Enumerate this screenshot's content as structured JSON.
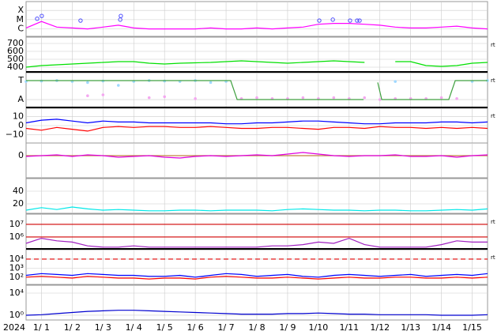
{
  "chart_data": {
    "type": "multi_panel",
    "year_label": "2024",
    "x": [
      0,
      0.5,
      1,
      1.5,
      2,
      2.5,
      3,
      3.5,
      4,
      4.5,
      5,
      5.5,
      6,
      6.5,
      7,
      7.5,
      8,
      8.5,
      9,
      9.5,
      10,
      10.5,
      11,
      11.5,
      12,
      12.5,
      13,
      13.5,
      14,
      14.5,
      15
    ],
    "xlim": [
      0,
      15
    ],
    "xticks": [
      {
        "value": 0.5,
        "label": "1/ 1"
      },
      {
        "value": 1.5,
        "label": "1/ 2"
      },
      {
        "value": 2.5,
        "label": "1/ 3"
      },
      {
        "value": 3.5,
        "label": "1/ 4"
      },
      {
        "value": 4.5,
        "label": "1/ 5"
      },
      {
        "value": 5.5,
        "label": "1/ 6"
      },
      {
        "value": 6.5,
        "label": "1/ 7"
      },
      {
        "value": 7.5,
        "label": "1/ 8"
      },
      {
        "value": 8.5,
        "label": "1/ 9"
      },
      {
        "value": 9.5,
        "label": "1/10"
      },
      {
        "value": 10.5,
        "label": "1/11"
      },
      {
        "value": 11.5,
        "label": "1/12"
      },
      {
        "value": 12.5,
        "label": "1/13"
      },
      {
        "value": 13.5,
        "label": "1/14"
      },
      {
        "value": 14.5,
        "label": "1/15"
      }
    ],
    "panels": [
      {
        "type": "line",
        "ylim": [
          -6.8,
          -3.05
        ],
        "yticks": [
          {
            "value": -4,
            "label": "X"
          },
          {
            "value": -5,
            "label": "M"
          },
          {
            "value": -6,
            "label": "C"
          }
        ],
        "series": [
          {
            "type": "line",
            "color": "#ff00ff",
            "values": [
              -5.9,
              -5.2,
              -5.8,
              -5.9,
              -6.0,
              -5.8,
              -5.6,
              -5.9,
              -6.0,
              -6.0,
              -6.0,
              -6.0,
              -5.9,
              -6.0,
              -6.0,
              -5.9,
              -6.0,
              -5.9,
              -5.8,
              -5.5,
              -5.4,
              -5.4,
              -5.5,
              -5.6,
              -5.8,
              -5.9,
              -5.9,
              -5.8,
              -5.7,
              -5.9,
              -6.0
            ]
          },
          {
            "type": "events",
            "color": "#5050ff",
            "x": [
              0.36,
              0.51,
              1.77,
              3.06,
              3.08,
              9.53,
              9.97,
              10.53,
              10.76,
              10.84
            ],
            "values": [
              -4.9,
              -4.6,
              -5.1,
              -5.0,
              -4.6,
              -5.1,
              -5.0,
              -5.1,
              -5.1,
              -5.1
            ]
          }
        ]
      },
      {
        "type": "line",
        "ylim": [
          340,
          780
        ],
        "yticks": [
          700,
          600,
          500,
          400
        ],
        "right_label": "rt",
        "series": [
          {
            "type": "line",
            "color": "#00e000",
            "values": [
              400,
              420,
              430,
              440,
              450,
              460,
              470,
              470,
              450,
              440,
              450,
              455,
              460,
              470,
              480,
              470,
              460,
              450,
              460,
              470,
              480,
              470,
              460,
              null,
              470,
              470,
              420,
              410,
              420,
              450,
              460
            ]
          }
        ]
      },
      {
        "type": "line",
        "ylim": [
          -1.83,
          1.83
        ],
        "yticks": [
          {
            "value": 1,
            "label": "T"
          },
          {
            "value": -1,
            "label": "A"
          }
        ],
        "right_label": "rt",
        "series": [
          {
            "type": "dots",
            "color": "#9fd8ff",
            "values": [
              0.9,
              0.95,
              1,
              0.9,
              0.8,
              0.95,
              0.5,
              0.9,
              1,
              0.95,
              0.9,
              1,
              0.8,
              0.9,
              null,
              null,
              null,
              null,
              null,
              null,
              null,
              null,
              null,
              null,
              0.9,
              null,
              null,
              null,
              null,
              0.9,
              1
            ]
          },
          {
            "type": "dots",
            "color": "#f4a8f0",
            "values": [
              null,
              null,
              null,
              null,
              -0.6,
              -0.5,
              null,
              null,
              -0.8,
              -0.7,
              null,
              -0.9,
              null,
              null,
              -0.9,
              -0.8,
              -0.9,
              -0.9,
              -0.8,
              -0.9,
              -0.8,
              -0.9,
              -0.8,
              -1.0,
              -0.9,
              -0.9,
              -0.9,
              -0.8,
              -0.9,
              null,
              null
            ]
          },
          {
            "type": "line",
            "color": "#40a040",
            "x": [
              0,
              6.65,
              6.86,
              10.97,
              11.1,
              11.43,
              11.56,
              13.74,
              13.95,
              15
            ],
            "values": [
              1,
              1,
              -1,
              -1,
              null,
              0.8,
              -1,
              -1,
              1,
              1
            ]
          }
        ]
      },
      {
        "type": "line",
        "ylim": [
          -19,
          19
        ],
        "yticks": [
          10,
          0,
          {
            "value": -10,
            "label": "−10"
          }
        ],
        "right_label": "rt",
        "series": [
          {
            "type": "line",
            "color": "#0000ff",
            "values": [
              3,
              6,
              7,
              5,
              3,
              5,
              4,
              4,
              3,
              3,
              3,
              3,
              3,
              2,
              2,
              3,
              3,
              4,
              5,
              5,
              4,
              3,
              2,
              2,
              3,
              3,
              3,
              4,
              4,
              3,
              4
            ]
          },
          {
            "type": "line",
            "color": "#ff0000",
            "values": [
              -3,
              -5,
              -2,
              -4,
              -6,
              -2,
              -1,
              -2,
              -1,
              -1,
              -2,
              -2,
              -1,
              -2,
              -3,
              -3,
              -2,
              -2,
              -3,
              -4,
              -2,
              -2,
              -3,
              -1,
              -2,
              -2,
              -3,
              -2,
              -3,
              -2,
              -3
            ]
          }
        ]
      },
      {
        "type": "line",
        "ylim": [
          -28,
          16
        ],
        "yticks": [
          0
        ],
        "hlines": [
          {
            "value": 0,
            "color": "#c08040"
          }
        ],
        "series": [
          {
            "type": "line",
            "color": "#e000e0",
            "values": [
              -1,
              0,
              1,
              -1,
              1,
              0,
              -2,
              -1,
              0,
              -2,
              -3,
              -1,
              0,
              -1,
              0,
              1,
              0,
              2,
              4,
              2,
              0,
              -1,
              0,
              0,
              1,
              -1,
              -1,
              0,
              -2,
              0,
              1
            ]
          }
        ]
      },
      {
        "type": "line",
        "ylim": [
          5,
          60
        ],
        "yticks": [
          40,
          20
        ],
        "series": [
          {
            "type": "line",
            "color": "#00e8e8",
            "values": [
              10,
              14,
              11,
              15,
              12,
              10,
              11,
              10,
              9,
              9,
              10,
              10,
              9,
              10,
              10,
              10,
              9,
              11,
              12,
              11,
              10,
              10,
              9,
              10,
              10,
              9,
              9,
              10,
              11,
              10,
              12
            ]
          }
        ]
      },
      {
        "type": "line",
        "ylim": [
          5.06,
          7.81
        ],
        "yticks": [
          {
            "value": 7,
            "label": "10⁷"
          },
          {
            "value": 6,
            "label": "10⁶"
          }
        ],
        "right_label": "rt",
        "hlines": [
          {
            "value": 7,
            "color": "#d00000"
          },
          {
            "value": 6,
            "color": "#d00000"
          }
        ],
        "series": [
          {
            "type": "line",
            "color": "#a020c0",
            "values": [
              5.5,
              5.9,
              5.7,
              5.6,
              5.3,
              5.2,
              5.2,
              5.3,
              5.2,
              5.2,
              5.2,
              5.2,
              5.2,
              5.2,
              5.2,
              5.2,
              5.3,
              5.3,
              5.4,
              5.6,
              5.5,
              5.9,
              5.4,
              5.2,
              5.2,
              5.2,
              5.2,
              5.4,
              5.7,
              5.6,
              5.6
            ]
          }
        ]
      },
      {
        "type": "line",
        "ylim": [
          1.2,
          5.04
        ],
        "yticks": [
          {
            "value": 4,
            "label": "10⁴"
          },
          {
            "value": 3,
            "label": "10³"
          },
          {
            "value": 2,
            "label": "10²"
          }
        ],
        "right_label": "rt",
        "hlines": [
          {
            "value": 4,
            "color": "#e00000",
            "dashed": true
          }
        ],
        "series": [
          {
            "type": "line",
            "color": "#0000ff",
            "values": [
              2.2,
              2.4,
              2.3,
              2.2,
              2.4,
              2.3,
              2.2,
              2.2,
              2.1,
              2.1,
              2.2,
              2.0,
              2.2,
              2.4,
              2.3,
              2.1,
              2.2,
              2.3,
              2.1,
              2.0,
              2.2,
              2.3,
              2.2,
              2.1,
              2.2,
              2.3,
              2.1,
              2.2,
              2.3,
              2.2,
              2.4
            ]
          },
          {
            "type": "line",
            "color": "#ff0000",
            "values": [
              2.0,
              2.1,
              2.0,
              1.9,
              2.1,
              2.0,
              1.9,
              1.9,
              1.8,
              1.9,
              1.9,
              1.8,
              2.0,
              2.1,
              2.0,
              1.9,
              1.9,
              2.0,
              1.9,
              1.8,
              1.9,
              2.0,
              1.9,
              1.9,
              2.0,
              2.0,
              1.9,
              1.9,
              2.0,
              1.9,
              2.0
            ]
          }
        ]
      },
      {
        "type": "line",
        "ylim": [
          -0.86,
          5.43
        ],
        "yticks": [
          {
            "value": 4,
            "label": "10⁴"
          },
          {
            "value": 0,
            "label": "10⁰"
          }
        ],
        "series": [
          {
            "type": "line",
            "color": "#0000d0",
            "values": [
              0.0,
              0.1,
              0.3,
              0.5,
              0.7,
              0.8,
              0.9,
              0.9,
              0.8,
              0.7,
              0.6,
              0.5,
              0.4,
              0.3,
              0.2,
              0.2,
              0.2,
              0.3,
              0.3,
              0.4,
              0.3,
              0.2,
              0.2,
              0.1,
              0.1,
              0.1,
              0.1,
              0.0,
              0.0,
              0.0,
              0.1
            ]
          }
        ]
      }
    ]
  }
}
